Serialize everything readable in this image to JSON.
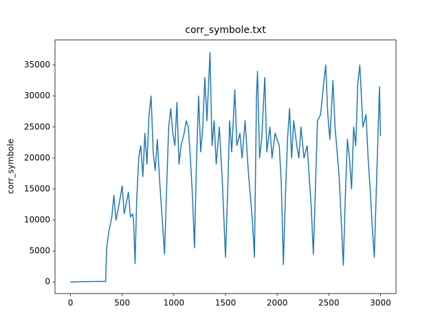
{
  "chart_data": {
    "type": "line",
    "title": "corr_symbole.txt",
    "y_label": "corr_symbole",
    "x": [
      0,
      100,
      200,
      300,
      340,
      350,
      370,
      400,
      420,
      440,
      470,
      500,
      520,
      560,
      580,
      600,
      610,
      625,
      640,
      660,
      680,
      700,
      720,
      740,
      760,
      780,
      800,
      820,
      840,
      860,
      880,
      910,
      930,
      950,
      970,
      990,
      1010,
      1030,
      1050,
      1070,
      1100,
      1120,
      1140,
      1160,
      1180,
      1200,
      1220,
      1240,
      1260,
      1280,
      1300,
      1320,
      1350,
      1370,
      1390,
      1410,
      1440,
      1470,
      1500,
      1520,
      1540,
      1560,
      1590,
      1610,
      1640,
      1660,
      1690,
      1720,
      1760,
      1780,
      1800,
      1810,
      1830,
      1850,
      1880,
      1900,
      1930,
      1950,
      1980,
      2020,
      2040,
      2060,
      2080,
      2100,
      2120,
      2140,
      2160,
      2190,
      2210,
      2230,
      2260,
      2290,
      2310,
      2330,
      2350,
      2370,
      2390,
      2420,
      2450,
      2470,
      2490,
      2510,
      2540,
      2560,
      2580,
      2600,
      2620,
      2640,
      2660,
      2680,
      2700,
      2720,
      2740,
      2760,
      2780,
      2800,
      2830,
      2860,
      2880,
      2900,
      2920,
      2940,
      2960,
      2980,
      2990,
      3000
    ],
    "series": [
      {
        "name": "corr_symbole",
        "color": "#1f77b4",
        "values": [
          0,
          50,
          80,
          100,
          100,
          5500,
          8000,
          10500,
          14000,
          10000,
          12500,
          15500,
          11000,
          14500,
          10500,
          11000,
          10000,
          3000,
          13000,
          20000,
          22000,
          17000,
          24000,
          19000,
          27000,
          30000,
          21000,
          18000,
          23000,
          17000,
          12000,
          4500,
          15000,
          25000,
          28000,
          24000,
          22000,
          29000,
          19000,
          22000,
          24000,
          26000,
          25000,
          20000,
          14000,
          5500,
          20000,
          30000,
          21000,
          25000,
          33000,
          26000,
          37000,
          22000,
          26000,
          19000,
          25000,
          16000,
          4000,
          14000,
          26000,
          21000,
          31000,
          22000,
          24000,
          20000,
          26000,
          18000,
          10000,
          4000,
          30000,
          34000,
          20000,
          23000,
          33000,
          21000,
          25000,
          20000,
          24000,
          22000,
          16000,
          2800,
          14000,
          23000,
          28000,
          20000,
          26000,
          22000,
          20000,
          25000,
          20000,
          22000,
          17000,
          12000,
          4500,
          15000,
          26000,
          27000,
          32000,
          35000,
          27000,
          23000,
          32500,
          25000,
          21000,
          17000,
          10000,
          2700,
          14000,
          23000,
          20000,
          15000,
          25000,
          22000,
          32000,
          35000,
          25000,
          27000,
          20000,
          15000,
          9000,
          4000,
          15000,
          26000,
          31500,
          23500
        ]
      }
    ],
    "xlim": [
      -150,
      3150
    ],
    "ylim": [
      -1860,
      39060
    ],
    "xticks": [
      0,
      500,
      1000,
      1500,
      2000,
      2500,
      3000
    ],
    "yticks": [
      0,
      5000,
      10000,
      15000,
      20000,
      25000,
      30000,
      35000
    ]
  }
}
